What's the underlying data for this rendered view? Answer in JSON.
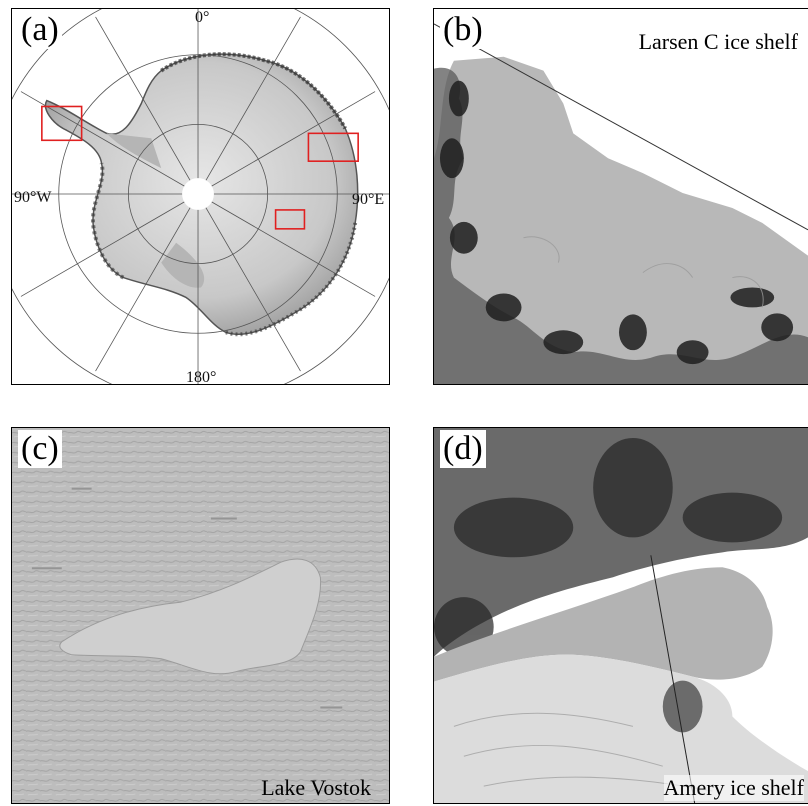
{
  "panels": {
    "a": {
      "tag": "(a)",
      "grid_labels": {
        "top": "0°",
        "left": "90°W",
        "right": "90°E",
        "bottom": "180°"
      }
    },
    "b": {
      "tag": "(b)",
      "caption": "Larsen C ice shelf"
    },
    "c": {
      "tag": "(c)",
      "caption": "Lake Vostok"
    },
    "d": {
      "tag": "(d)",
      "caption": "Amery ice shelf"
    }
  },
  "colors": {
    "highlight_box": "#e02020",
    "frame": "#000000",
    "ice_gray": "#b9b9b9",
    "shadow_dark": "#1a1a1a"
  }
}
